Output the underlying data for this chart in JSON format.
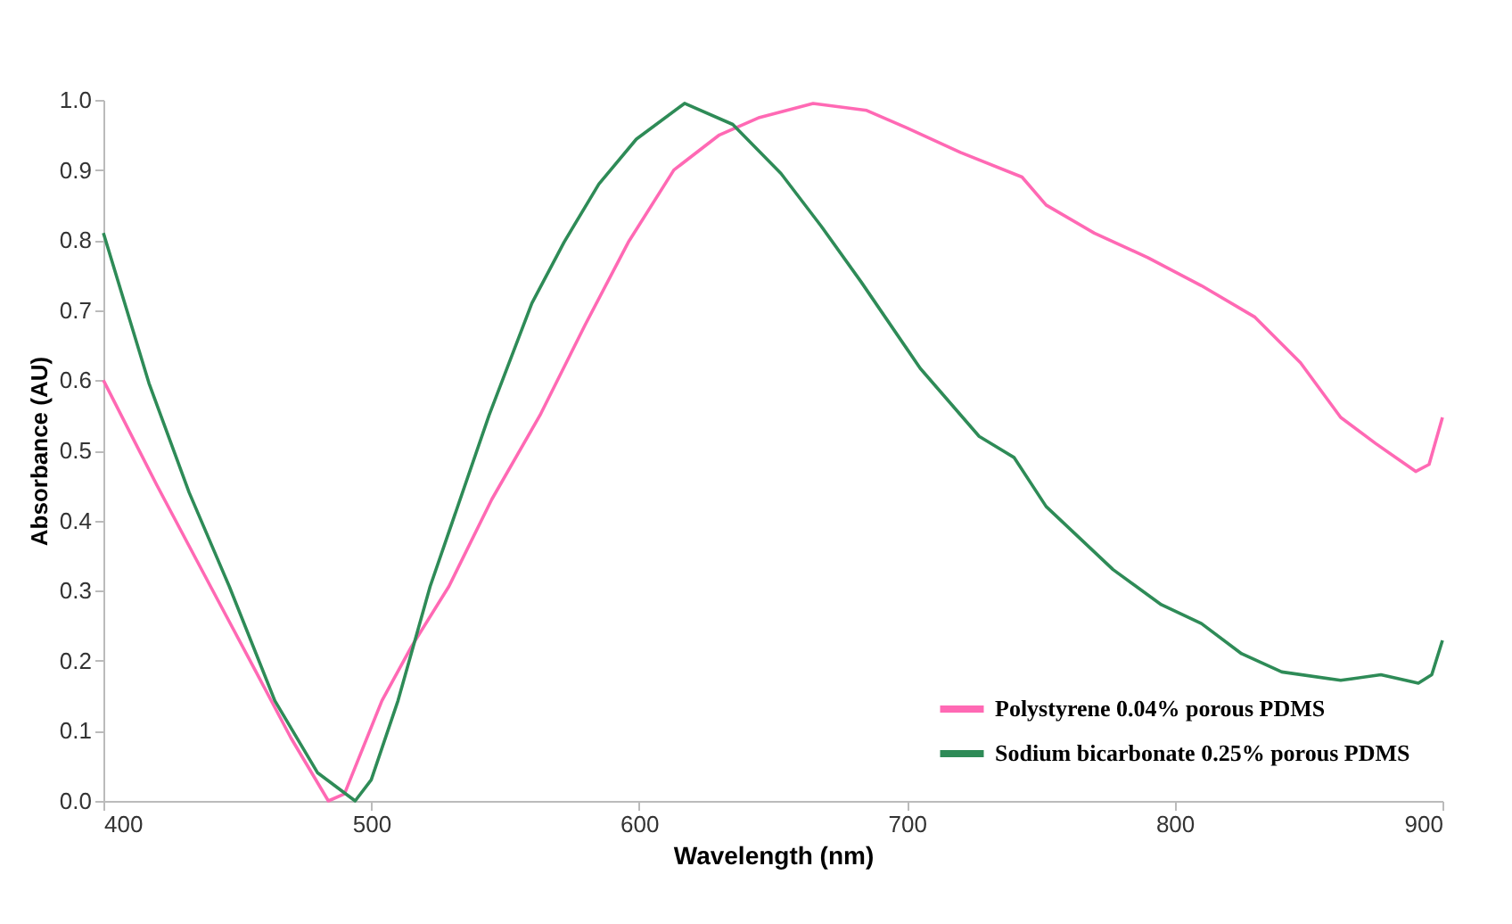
{
  "chart_data": {
    "type": "line",
    "xlabel": "Wavelength (nm)",
    "ylabel": "Absorbance (AU)",
    "xlim": [
      400,
      900
    ],
    "xticks": [
      400,
      500,
      600,
      700,
      800,
      900
    ],
    "ylim": [
      0,
      1.0
    ],
    "yticks": [
      {
        "value": 0,
        "label": "0.0"
      },
      {
        "value": 0.1,
        "label": "0.1"
      },
      {
        "value": 0.2,
        "label": "0.2"
      },
      {
        "value": 0.3,
        "label": "0.3"
      },
      {
        "value": 0.4,
        "label": "0.4"
      },
      {
        "value": 0.5,
        "label": "0.5"
      },
      {
        "value": 0.6,
        "label": "0.6"
      },
      {
        "value": 0.7,
        "label": "0.7"
      },
      {
        "value": 0.8,
        "label": "0.8"
      },
      {
        "value": 0.9,
        "label": "0.9"
      },
      {
        "value": 1.0,
        "label": "1.0"
      }
    ],
    "grid": false,
    "legend": "bottom right",
    "marker": "none",
    "line_style": "solid",
    "series": [
      {
        "name": "Polystyrene 0.04% porous PDMS",
        "color": "#ff69b4",
        "x": [
          400,
          420,
          440,
          457,
          470,
          484,
          490,
          504,
          515,
          529,
          545,
          563,
          580,
          596,
          613,
          630,
          645,
          665,
          685,
          700,
          720,
          743,
          752,
          770,
          790,
          810,
          830,
          847,
          862,
          875,
          890,
          895,
          900
        ],
        "values": [
          0.6,
          0.45,
          0.306,
          0.184,
          0.09,
          0.0,
          0.01,
          0.143,
          0.22,
          0.306,
          0.43,
          0.55,
          0.68,
          0.797,
          0.9,
          0.95,
          0.975,
          0.995,
          0.985,
          0.96,
          0.925,
          0.89,
          0.85,
          0.81,
          0.775,
          0.735,
          0.69,
          0.625,
          0.547,
          0.51,
          0.47,
          0.48,
          0.547
        ]
      },
      {
        "name": "Sodium bicarbonate 0.25% porous PDMS",
        "color": "#2e8b57",
        "x": [
          400,
          417,
          432,
          447,
          464,
          480,
          494,
          500,
          510,
          522,
          544,
          560,
          572,
          585,
          599,
          617,
          635,
          653,
          668,
          683,
          705,
          727,
          740,
          752,
          777,
          795,
          810,
          825,
          840,
          862,
          877,
          891,
          896,
          900
        ],
        "values": [
          0.81,
          0.596,
          0.44,
          0.306,
          0.143,
          0.04,
          0.0,
          0.03,
          0.143,
          0.306,
          0.55,
          0.71,
          0.797,
          0.88,
          0.944,
          0.995,
          0.965,
          0.895,
          0.82,
          0.74,
          0.617,
          0.52,
          0.49,
          0.42,
          0.33,
          0.28,
          0.253,
          0.21,
          0.184,
          0.172,
          0.18,
          0.168,
          0.18,
          0.229
        ]
      }
    ]
  }
}
